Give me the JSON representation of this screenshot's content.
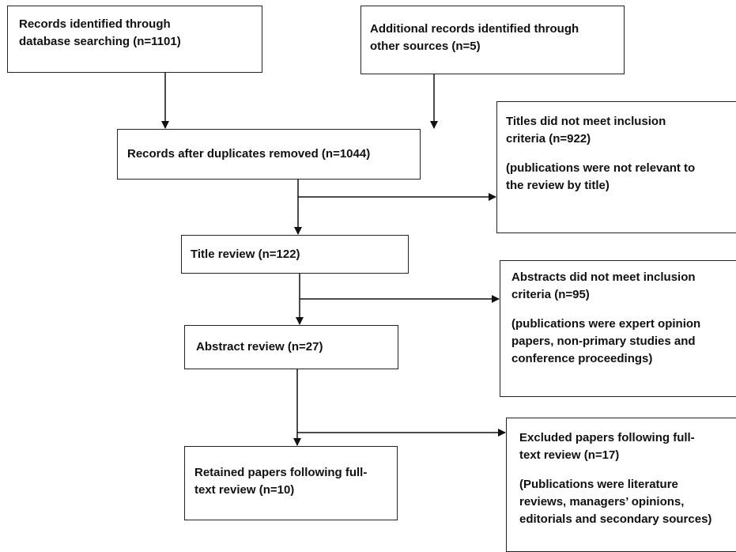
{
  "boxes": {
    "records_db": [
      "Records identified through",
      "database searching (n=1101)"
    ],
    "records_other": [
      "Additional records identified through",
      "other sources (n=5)"
    ],
    "after_duplicates": "Records after duplicates removed (n=1044)",
    "titles_excluded": {
      "lines": [
        "Titles did not meet inclusion",
        "criteria (n=922)"
      ],
      "note": [
        "(publications were not relevant to",
        "the review by title)"
      ]
    },
    "title_review": "Title review (n=122)",
    "abstracts_excluded": {
      "lines": [
        "Abstracts did not meet inclusion",
        "criteria (n=95)"
      ],
      "note": [
        "(publications were expert opinion",
        "papers, non-primary studies and",
        "conference proceedings)"
      ]
    },
    "abstract_review": "Abstract review (n=27)",
    "retained": [
      "Retained papers following full-",
      "text review (n=10)"
    ],
    "excluded_fulltext": {
      "lines": [
        "Excluded papers following full-",
        "text review (n=17)"
      ],
      "note": [
        "(Publications were literature",
        "reviews, managers’ opinions,",
        "editorials and secondary sources)"
      ]
    }
  }
}
